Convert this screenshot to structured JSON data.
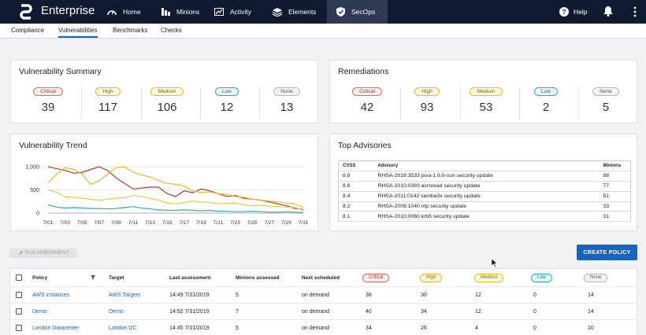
{
  "app": {
    "brand": "Enterprise"
  },
  "nav": {
    "items": [
      {
        "label": "Home",
        "icon": "gauge-icon"
      },
      {
        "label": "Minions",
        "icon": "server-icon"
      },
      {
        "label": "Activity",
        "icon": "chart-icon"
      },
      {
        "label": "Elements",
        "icon": "layers-icon"
      },
      {
        "label": "SecOps",
        "icon": "shield-icon",
        "active": true
      }
    ],
    "help": "Help"
  },
  "subnav": [
    "Compliance",
    "Vulnerabilities",
    "Benchmarks",
    "Checks"
  ],
  "colors": {
    "critical": "#c0392b",
    "high": "#f0b722",
    "medium": "#e4c21c",
    "low": "#25b1be",
    "accent": "#1565c0",
    "topbar": "#0f1930"
  },
  "summary": {
    "title": "Vulnerability Summary",
    "items": [
      {
        "label": "Critical",
        "value": "39"
      },
      {
        "label": "High",
        "value": "117"
      },
      {
        "label": "Medium",
        "value": "106"
      },
      {
        "label": "Low",
        "value": "12"
      },
      {
        "label": "None",
        "value": "13"
      }
    ]
  },
  "remediations": {
    "title": "Remediations",
    "items": [
      {
        "label": "Critical",
        "value": "42"
      },
      {
        "label": "High",
        "value": "93"
      },
      {
        "label": "Medium",
        "value": "53"
      },
      {
        "label": "Low",
        "value": "2"
      },
      {
        "label": "None",
        "value": "5"
      }
    ]
  },
  "trend": {
    "title": "Vulnerability Trend"
  },
  "chart_data": {
    "type": "line",
    "x": [
      "7/01",
      "7/02",
      "7/03",
      "7/04",
      "7/05",
      "7/06",
      "7/07",
      "7/08",
      "7/09",
      "7/10",
      "7/11",
      "7/12",
      "7/13",
      "7/14",
      "7/15",
      "7/16",
      "7/17",
      "7/18",
      "7/19",
      "7/20",
      "7/21",
      "7/22",
      "7/23",
      "7/24",
      "7/25",
      "7/26",
      "7/27",
      "7/28",
      "7/29",
      "7/30",
      "7/31"
    ],
    "x_tick_labels": [
      "7/01",
      "7/03",
      "7/05",
      "7/07",
      "7/09",
      "7/11",
      "7/13",
      "7/15",
      "7/17",
      "7/19",
      "7/21",
      "7/23",
      "7/25",
      "7/27",
      "7/29",
      "7/31"
    ],
    "y_ticks": [
      "0",
      "500",
      "1,000"
    ],
    "ylim": [
      0,
      1000
    ],
    "series": [
      {
        "color": "#b03a2e",
        "values": [
          1000,
          960,
          920,
          860,
          880,
          940,
          1000,
          920,
          760,
          640,
          520,
          540,
          560,
          560,
          420,
          360,
          480,
          440,
          520,
          480,
          420,
          360,
          380,
          320,
          300,
          280,
          240,
          200,
          160,
          100,
          80
        ]
      },
      {
        "color": "#f0b722",
        "values": [
          650,
          840,
          980,
          940,
          840,
          620,
          700,
          840,
          980,
          1000,
          880,
          820,
          780,
          700,
          640,
          620,
          580,
          480,
          440,
          460,
          420,
          400,
          360,
          340,
          300,
          280,
          260,
          240,
          220,
          200,
          120
        ]
      },
      {
        "color": "#e8c84a",
        "values": [
          500,
          450,
          350,
          340,
          320,
          300,
          280,
          300,
          320,
          330,
          380,
          360,
          320,
          280,
          220,
          200,
          230,
          260,
          240,
          230,
          200,
          210,
          220,
          180,
          160,
          170,
          150,
          140,
          130,
          120,
          60
        ]
      },
      {
        "color": "#25b1be",
        "values": [
          180,
          130,
          110,
          120,
          110,
          100,
          100,
          90,
          100,
          120,
          140,
          110,
          90,
          70,
          60,
          60,
          70,
          60,
          50,
          60,
          40,
          40,
          30,
          30,
          40,
          30,
          20,
          20,
          30,
          20,
          10
        ]
      }
    ]
  },
  "advisories": {
    "title": "Top Advisories",
    "columns": [
      "CVSS",
      "Advisory",
      "Minions"
    ],
    "rows": [
      [
        "8.8",
        "RHSA-2018:3533 java-1.6.0-sun security update",
        "88"
      ],
      [
        "8.6",
        "RHSA-2010:0383 acroread security update",
        "77"
      ],
      [
        "8.4",
        "RHSA-2011:0142 samba3x security update",
        "51"
      ],
      [
        "8.2",
        "RHSA-2009:1040 ntp security update",
        "33"
      ],
      [
        "8.1",
        "RHSA-2010:0060 krb5 security update",
        "31"
      ]
    ]
  },
  "actions": {
    "run": "RUN ASSESSMENT",
    "create": "CREATE POLICY"
  },
  "policies": {
    "columns": [
      "Policy",
      "Target",
      "Last assessment",
      "Minions assessed",
      "Next scheduled",
      "Critical",
      "High",
      "Medium",
      "Low",
      "None"
    ],
    "rows": [
      [
        "AWS instances",
        "AWS Targets",
        "14:49 7/31/2019",
        "5",
        "on demand",
        "38",
        "30",
        "12",
        "0",
        "14"
      ],
      [
        "Demo",
        "Demo",
        "14:52 7/31/2019",
        "7",
        "on demand",
        "40",
        "34",
        "12",
        "0",
        "14"
      ],
      [
        "London Datacenter",
        "London DC",
        "14:45 7/31/2019",
        "5",
        "on demand",
        "34",
        "26",
        "4",
        "0",
        "10"
      ]
    ]
  }
}
